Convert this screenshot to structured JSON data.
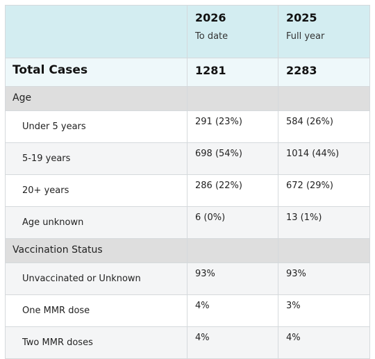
{
  "header": {
    "col2_year": "2026",
    "col2_sub": "To date",
    "col3_year": "2025",
    "col3_sub": "Full year"
  },
  "total": {
    "label": "Total Cases",
    "v2026": "1281",
    "v2025": "2283"
  },
  "sections": [
    {
      "title": "Age",
      "rows": [
        {
          "label": "Under 5 years",
          "v2026": "291 (23%)",
          "v2025": "584 (26%)"
        },
        {
          "label": "5-19 years",
          "v2026": "698 (54%)",
          "v2025": "1014 (44%)"
        },
        {
          "label": "20+ years",
          "v2026": "286 (22%)",
          "v2025": "672 (29%)"
        },
        {
          "label": "Age unknown",
          "v2026": "6 (0%)",
          "v2025": "13 (1%)"
        }
      ]
    },
    {
      "title": "Vaccination Status",
      "rows": [
        {
          "label": "Unvaccinated or Unknown",
          "v2026": "93%",
          "v2025": "93%"
        },
        {
          "label": "One MMR dose",
          "v2026": "4%",
          "v2025": "3%"
        },
        {
          "label": "Two MMR doses",
          "v2026": "4%",
          "v2025": "4%"
        }
      ]
    }
  ]
}
